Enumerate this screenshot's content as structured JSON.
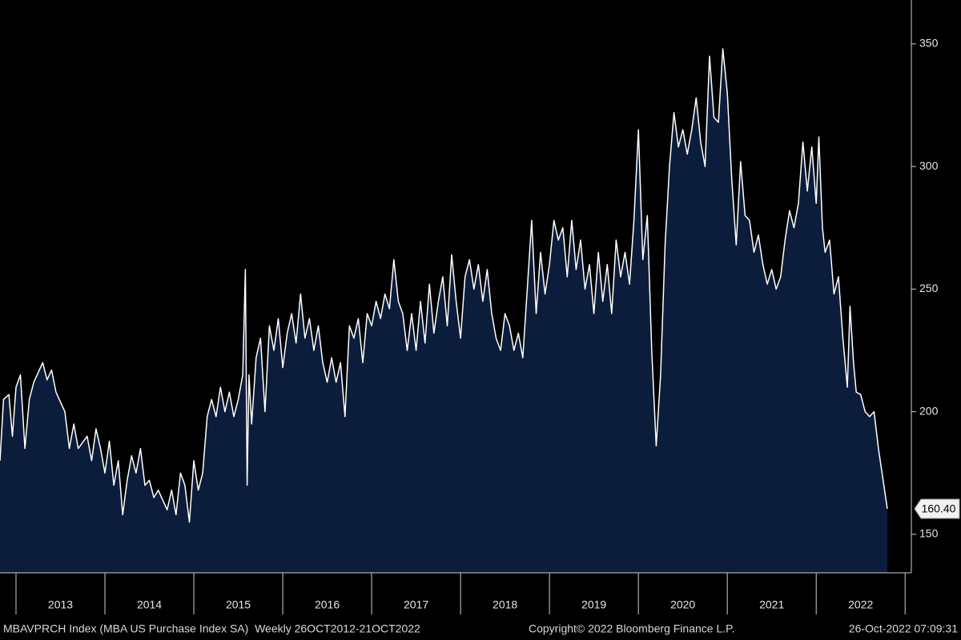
{
  "chart_data": {
    "type": "area",
    "color": "#ffffff",
    "fill_color": "#0c1d3c",
    "x": [
      2012.82,
      2012.86,
      2012.92,
      2012.96,
      2013.0,
      2013.05,
      2013.1,
      2013.15,
      2013.2,
      2013.3,
      2013.35,
      2013.4,
      2013.45,
      2013.55,
      2013.6,
      2013.65,
      2013.7,
      2013.8,
      2013.85,
      2013.9,
      2013.95,
      2014.0,
      2014.05,
      2014.1,
      2014.15,
      2014.2,
      2014.25,
      2014.3,
      2014.35,
      2014.4,
      2014.45,
      2014.5,
      2014.55,
      2014.6,
      2014.7,
      2014.75,
      2014.8,
      2014.85,
      2014.9,
      2014.95,
      2015.0,
      2015.05,
      2015.1,
      2015.15,
      2015.2,
      2015.25,
      2015.3,
      2015.35,
      2015.4,
      2015.45,
      2015.5,
      2015.55,
      2015.58,
      2015.6,
      2015.62,
      2015.65,
      2015.7,
      2015.75,
      2015.8,
      2015.85,
      2015.9,
      2015.95,
      2016.0,
      2016.05,
      2016.1,
      2016.15,
      2016.2,
      2016.25,
      2016.3,
      2016.35,
      2016.4,
      2016.45,
      2016.5,
      2016.55,
      2016.6,
      2016.65,
      2016.7,
      2016.75,
      2016.8,
      2016.85,
      2016.9,
      2016.95,
      2017.0,
      2017.05,
      2017.1,
      2017.15,
      2017.2,
      2017.25,
      2017.3,
      2017.35,
      2017.4,
      2017.45,
      2017.5,
      2017.55,
      2017.6,
      2017.65,
      2017.7,
      2017.75,
      2017.8,
      2017.85,
      2017.9,
      2017.95,
      2018.0,
      2018.05,
      2018.1,
      2018.15,
      2018.2,
      2018.25,
      2018.3,
      2018.35,
      2018.4,
      2018.45,
      2018.5,
      2018.55,
      2018.6,
      2018.65,
      2018.7,
      2018.75,
      2018.8,
      2018.85,
      2018.9,
      2018.95,
      2019.0,
      2019.05,
      2019.1,
      2019.15,
      2019.2,
      2019.25,
      2019.3,
      2019.35,
      2019.4,
      2019.45,
      2019.5,
      2019.55,
      2019.6,
      2019.65,
      2019.7,
      2019.75,
      2019.8,
      2019.85,
      2019.9,
      2019.95,
      2020.0,
      2020.05,
      2020.1,
      2020.15,
      2020.2,
      2020.25,
      2020.3,
      2020.35,
      2020.4,
      2020.45,
      2020.5,
      2020.55,
      2020.6,
      2020.65,
      2020.7,
      2020.75,
      2020.8,
      2020.85,
      2020.9,
      2020.95,
      2021.0,
      2021.05,
      2021.1,
      2021.15,
      2021.2,
      2021.25,
      2021.3,
      2021.35,
      2021.4,
      2021.45,
      2021.5,
      2021.55,
      2021.6,
      2021.65,
      2021.7,
      2021.75,
      2021.8,
      2021.85,
      2021.9,
      2021.95,
      2022.0,
      2022.03,
      2022.07,
      2022.1,
      2022.15,
      2022.2,
      2022.25,
      2022.3,
      2022.35,
      2022.38,
      2022.42,
      2022.45,
      2022.5,
      2022.55,
      2022.6,
      2022.65,
      2022.7,
      2022.8
    ],
    "values": [
      180,
      205,
      207,
      190,
      210,
      215,
      185,
      205,
      212,
      220,
      213,
      217,
      208,
      200,
      185,
      195,
      185,
      190,
      180,
      193,
      185,
      175,
      188,
      170,
      180,
      158,
      172,
      182,
      175,
      185,
      170,
      172,
      165,
      168,
      160,
      168,
      158,
      175,
      170,
      155,
      180,
      168,
      175,
      198,
      205,
      198,
      210,
      200,
      208,
      198,
      205,
      215,
      258,
      170,
      215,
      195,
      222,
      230,
      200,
      235,
      225,
      238,
      218,
      232,
      240,
      228,
      248,
      230,
      238,
      225,
      235,
      220,
      212,
      222,
      212,
      220,
      198,
      235,
      230,
      238,
      220,
      240,
      235,
      245,
      238,
      248,
      242,
      262,
      245,
      240,
      225,
      240,
      225,
      245,
      228,
      252,
      232,
      245,
      255,
      235,
      264,
      245,
      230,
      255,
      262,
      250,
      260,
      245,
      258,
      240,
      230,
      225,
      240,
      235,
      225,
      232,
      222,
      250,
      278,
      240,
      265,
      248,
      260,
      278,
      270,
      275,
      255,
      278,
      258,
      270,
      250,
      260,
      240,
      265,
      245,
      260,
      240,
      270,
      255,
      265,
      252,
      278,
      315,
      262,
      280,
      225,
      186,
      215,
      268,
      300,
      322,
      308,
      315,
      305,
      315,
      328,
      310,
      300,
      345,
      320,
      318,
      348,
      330,
      295,
      268,
      302,
      280,
      278,
      265,
      272,
      260,
      252,
      258,
      250,
      255,
      270,
      282,
      275,
      285,
      310,
      290,
      308,
      285,
      312,
      275,
      265,
      270,
      248,
      255,
      230,
      210,
      243,
      220,
      208,
      207,
      200,
      198,
      200,
      185,
      160.4
    ],
    "last_value": {
      "value": 160.4,
      "label": "160.40"
    },
    "xlim": [
      2012.82,
      2023.07
    ],
    "xticks": [
      {
        "value": 2013.5,
        "label": "2013"
      },
      {
        "value": 2014.5,
        "label": "2014"
      },
      {
        "value": 2015.5,
        "label": "2015"
      },
      {
        "value": 2016.5,
        "label": "2016"
      },
      {
        "value": 2017.5,
        "label": "2017"
      },
      {
        "value": 2018.5,
        "label": "2018"
      },
      {
        "value": 2019.5,
        "label": "2019"
      },
      {
        "value": 2020.5,
        "label": "2020"
      },
      {
        "value": 2021.5,
        "label": "2021"
      },
      {
        "value": 2022.5,
        "label": "2022"
      }
    ],
    "ylim": [
      134.3,
      367.9
    ],
    "yticks": [
      150,
      200,
      250,
      300,
      350
    ],
    "footer": {
      "description": "MBAVPRCH Index (MBA US Purchase Index SA)  Weekly 26OCT2012-21OCT2022",
      "copyright": "Copyright© 2022 Bloomberg Finance L.P.",
      "timestamp": "26-Oct-2022 07:09:31"
    }
  }
}
